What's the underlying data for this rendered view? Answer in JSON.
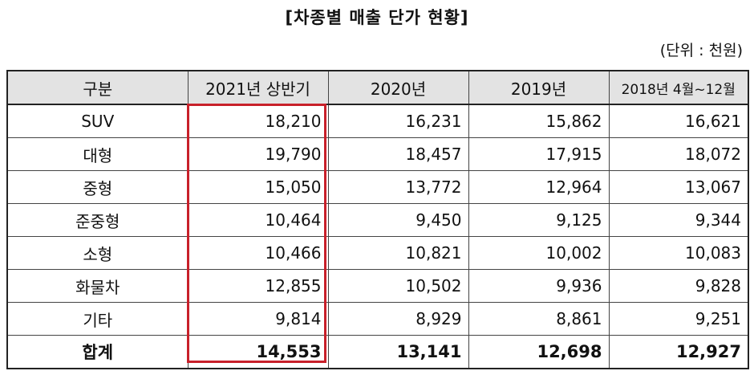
{
  "title": "[차종별 매출 단가 현황]",
  "unit": "(단위 : 천원)",
  "table": {
    "headers": [
      "구분",
      "2021년 상반기",
      "2020년",
      "2019년",
      "2018년 4월~12월"
    ],
    "rows": [
      [
        "SUV",
        "18,210",
        "16,231",
        "15,862",
        "16,621"
      ],
      [
        "대형",
        "19,790",
        "18,457",
        "17,915",
        "18,072"
      ],
      [
        "중형",
        "15,050",
        "13,772",
        "12,964",
        "13,067"
      ],
      [
        "준중형",
        "10,464",
        "9,450",
        "9,125",
        "9,344"
      ],
      [
        "소형",
        "10,466",
        "10,821",
        "10,002",
        "10,083"
      ],
      [
        "화물차",
        "12,855",
        "10,502",
        "9,936",
        "9,828"
      ],
      [
        "기타",
        "9,814",
        "8,929",
        "8,861",
        "9,251"
      ]
    ],
    "total": [
      "합계",
      "14,553",
      "13,141",
      "12,698",
      "12,927"
    ]
  },
  "highlight_color": "#c8202a"
}
